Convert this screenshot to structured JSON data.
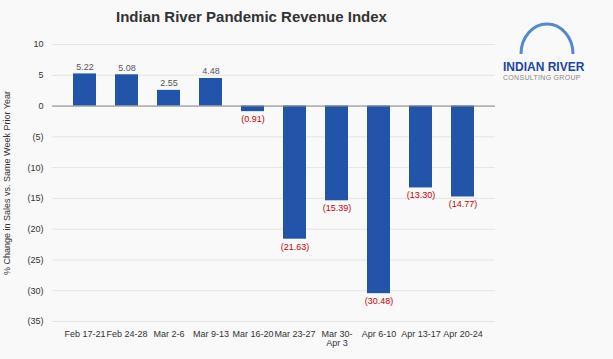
{
  "chart_data": {
    "type": "bar",
    "title": "Indian River Pandemic Revenue Index",
    "ylabel": "% Change in Sales vs. Same Week Prior Year",
    "categories": [
      "Feb 17-21",
      "Feb 24-28",
      "Mar 2-6",
      "Mar 9-13",
      "Mar 16-20",
      "Mar 23-27",
      "Mar 30-\nApr 3",
      "Apr 6-10",
      "Apr 13-17",
      "Apr 20-24"
    ],
    "values": [
      5.22,
      5.08,
      2.55,
      4.48,
      -0.91,
      -21.63,
      -15.39,
      -30.48,
      -13.3,
      -14.77
    ],
    "value_labels": [
      "5.22",
      "5.08",
      "2.55",
      "4.48",
      "(0.91)",
      "(21.63)",
      "(15.39)",
      "(30.48)",
      "(13.30)",
      "(14.77)"
    ],
    "data_labels": true,
    "color": "#2255AA",
    "ylim": [
      -35,
      10
    ],
    "yticks": [
      10,
      5,
      0,
      {
        "value": -5,
        "label": "(5)"
      },
      {
        "value": -10,
        "label": "(10)"
      },
      {
        "value": -15,
        "label": "(15)"
      },
      {
        "value": -20,
        "label": "(20)"
      },
      {
        "value": -25,
        "label": "(25)"
      },
      {
        "value": -30,
        "label": "(30)"
      },
      {
        "value": -35,
        "label": "(35)"
      }
    ],
    "grid": true,
    "annotations": [
      "INDIAN RIVER",
      "CONSULTING GROUP"
    ]
  }
}
